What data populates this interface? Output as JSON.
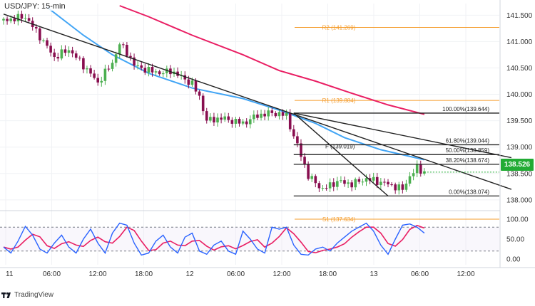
{
  "title": "USD/JPY: 15-min",
  "brand": "TradingView",
  "current_price_label": "138.526",
  "colors": {
    "candle_up": "#4caf50",
    "candle_down": "#880e4f",
    "ma_fast": "#42a5f5",
    "ma_slow": "#e91e63",
    "pivot": "#f59c2b",
    "fib": "#222222",
    "trendline": "#222222",
    "stoch_k": "#2962ff",
    "stoch_d": "#e91e63",
    "current_price": "#22ab34"
  },
  "chart_data": [
    {
      "type": "candlestick",
      "title": "USD/JPY: 15-min",
      "y_ticks": [
        "141.500",
        "141.000",
        "140.500",
        "140.000",
        "139.500",
        "139.000",
        "138.500",
        "138.000"
      ],
      "x_ticks": [
        "11",
        "06:00",
        "12:00",
        "18:00",
        "12",
        "06:00",
        "12:00",
        "18:00",
        "13",
        "06:00",
        "12:00"
      ],
      "ylim": [
        137.85,
        141.72
      ],
      "candle_path": [
        [
          0,
          141.4
        ],
        [
          3,
          141.47
        ],
        [
          5,
          141.1
        ],
        [
          7,
          140.7
        ],
        [
          9,
          140.85
        ],
        [
          11,
          140.55
        ],
        [
          13,
          140.22
        ],
        [
          15,
          140.6
        ],
        [
          16,
          140.95
        ],
        [
          17,
          140.8
        ],
        [
          18,
          140.55
        ],
        [
          20,
          140.45
        ],
        [
          22,
          140.4
        ],
        [
          23,
          140.45
        ],
        [
          26,
          140.2
        ],
        [
          27,
          139.95
        ],
        [
          28,
          139.5
        ],
        [
          30,
          139.55
        ],
        [
          33,
          139.45
        ],
        [
          35,
          139.6
        ],
        [
          37,
          139.65
        ],
        [
          39,
          139.6
        ],
        [
          40,
          139.2
        ],
        [
          41,
          138.85
        ],
        [
          42,
          138.45
        ],
        [
          44,
          138.2
        ],
        [
          46,
          138.35
        ],
        [
          48,
          138.3
        ],
        [
          50,
          138.4
        ],
        [
          53,
          138.3
        ],
        [
          55,
          138.2
        ],
        [
          56,
          138.45
        ],
        [
          57,
          138.6
        ],
        [
          58,
          138.53
        ]
      ],
      "moving_averages": [
        {
          "color": "#42a5f5",
          "points": [
            [
              6,
              141.65
            ],
            [
              11,
              141.12
            ],
            [
              15,
              140.75
            ],
            [
              20,
              140.4
            ],
            [
              26,
              140.12
            ],
            [
              33,
              139.92
            ],
            [
              38,
              139.7
            ],
            [
              43,
              139.45
            ],
            [
              47,
              139.18
            ],
            [
              52,
              138.95
            ],
            [
              58,
              138.76
            ]
          ]
        },
        {
          "color": "#e91e63",
          "points": [
            [
              16,
              141.68
            ],
            [
              20,
              141.47
            ],
            [
              26,
              141.12
            ],
            [
              33,
              140.75
            ],
            [
              38,
              140.45
            ],
            [
              43,
              140.25
            ],
            [
              48,
              140.02
            ],
            [
              53,
              139.8
            ],
            [
              58,
              139.62
            ]
          ]
        }
      ],
      "pivot_levels": [
        {
          "label": "R2 (141.269)",
          "value": 141.269
        },
        {
          "label": "R1 (139.884)",
          "value": 139.884
        },
        {
          "label": "S1 (137.634)",
          "value": 137.634
        }
      ],
      "fib_levels": [
        {
          "label": "100.00%(139.644)",
          "value": 139.644
        },
        {
          "label": "61.80%(139.044)",
          "value": 139.044
        },
        {
          "label": "50.00%(138.859)",
          "value": 138.859
        },
        {
          "label": "38.20%(138.674)",
          "value": 138.674
        },
        {
          "label": "0.00%(138.074)",
          "value": 138.074
        }
      ],
      "fib_fan_label": "F (139.019)",
      "trendlines": [
        [
          [
            0,
            141.52
          ],
          [
            70,
            138.2
          ]
        ],
        [
          [
            40,
            139.644
          ],
          [
            70,
            138.8
          ]
        ],
        [
          [
            40,
            139.644
          ],
          [
            53,
            138.074
          ]
        ]
      ],
      "current_price": 138.526
    },
    {
      "type": "line",
      "title": "Stochastic",
      "y_ticks": [
        "100.00",
        "50.00",
        "0.00"
      ],
      "ylim": [
        0,
        100
      ],
      "reference_levels": [
        80,
        20
      ],
      "k_points": [
        [
          0,
          30
        ],
        [
          1,
          15
        ],
        [
          2,
          45
        ],
        [
          3,
          82
        ],
        [
          4,
          60
        ],
        [
          5,
          25
        ],
        [
          6,
          15
        ],
        [
          7,
          40
        ],
        [
          8,
          60
        ],
        [
          9,
          30
        ],
        [
          10,
          15
        ],
        [
          11,
          50
        ],
        [
          12,
          75
        ],
        [
          13,
          40
        ],
        [
          14,
          15
        ],
        [
          15,
          65
        ],
        [
          16,
          90
        ],
        [
          17,
          85
        ],
        [
          18,
          40
        ],
        [
          19,
          10
        ],
        [
          20,
          15
        ],
        [
          21,
          45
        ],
        [
          22,
          60
        ],
        [
          23,
          30
        ],
        [
          24,
          15
        ],
        [
          25,
          55
        ],
        [
          26,
          65
        ],
        [
          27,
          20
        ],
        [
          28,
          12
        ],
        [
          29,
          35
        ],
        [
          30,
          45
        ],
        [
          31,
          20
        ],
        [
          32,
          12
        ],
        [
          33,
          70
        ],
        [
          34,
          50
        ],
        [
          35,
          25
        ],
        [
          36,
          15
        ],
        [
          37,
          80
        ],
        [
          38,
          75
        ],
        [
          39,
          80
        ],
        [
          40,
          35
        ],
        [
          41,
          12
        ],
        [
          42,
          10
        ],
        [
          43,
          25
        ],
        [
          44,
          30
        ],
        [
          45,
          20
        ],
        [
          46,
          40
        ],
        [
          47,
          55
        ],
        [
          48,
          70
        ],
        [
          49,
          80
        ],
        [
          50,
          90
        ],
        [
          51,
          70
        ],
        [
          52,
          35
        ],
        [
          53,
          12
        ],
        [
          54,
          50
        ],
        [
          55,
          85
        ],
        [
          56,
          88
        ],
        [
          57,
          80
        ],
        [
          58,
          65
        ]
      ]
    }
  ]
}
